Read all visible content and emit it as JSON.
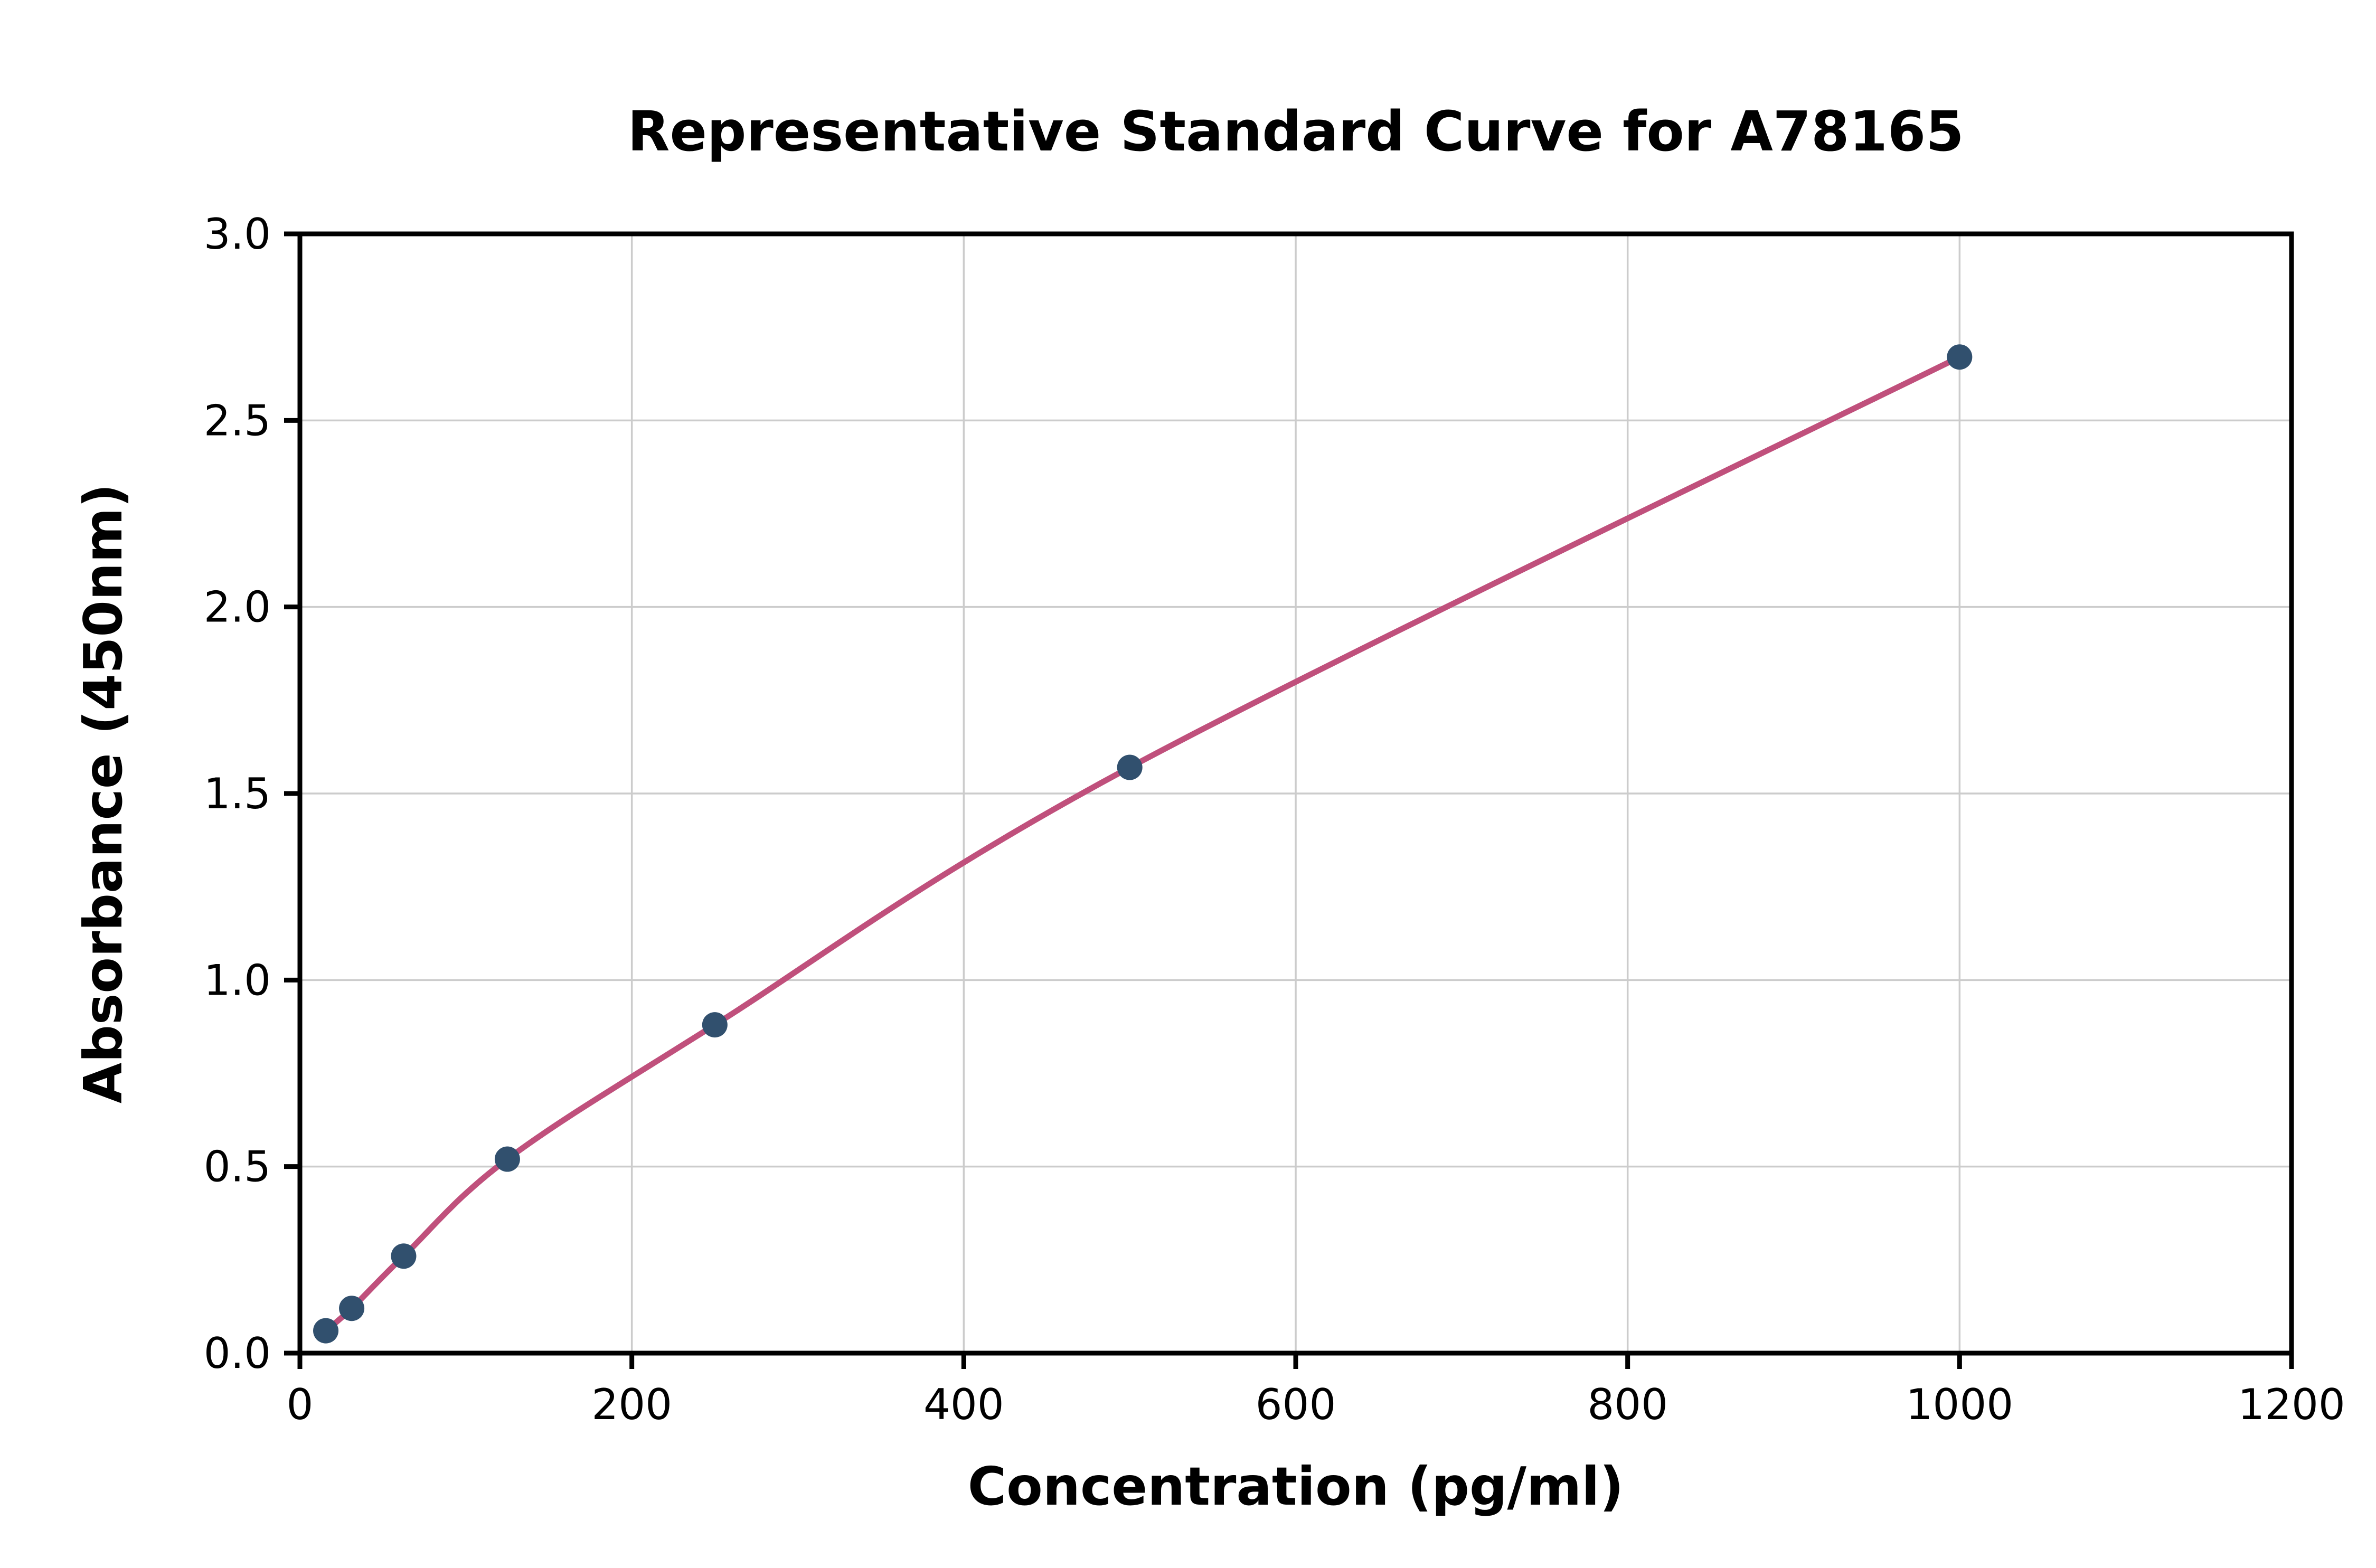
{
  "chart_data": {
    "type": "scatter",
    "title": "Representative Standard Curve for A78165",
    "xlabel": "Concentration (pg/ml)",
    "ylabel": "Absorbance (450nm)",
    "xlim": [
      0,
      1200
    ],
    "ylim": [
      0,
      3
    ],
    "x_ticks": [
      0,
      200,
      400,
      600,
      800,
      1000,
      1200
    ],
    "x_tick_labels": [
      "0",
      "200",
      "400",
      "600",
      "800",
      "1000",
      "1200"
    ],
    "y_ticks": [
      0,
      0.5,
      1,
      1.5,
      2,
      2.5,
      3
    ],
    "y_tick_labels": [
      "0.0",
      "0.5",
      "1.0",
      "1.5",
      "2.0",
      "2.5",
      "3.0"
    ],
    "grid": true,
    "legend_position": "none",
    "series": [
      {
        "name": "standard-points",
        "x": [
          15.6,
          31.2,
          62.5,
          125,
          250,
          500,
          1000
        ],
        "y": [
          0.06,
          0.12,
          0.26,
          0.52,
          0.88,
          1.57,
          2.67
        ]
      }
    ],
    "fit_curve_through_points": true,
    "colors": {
      "curve": "#c0507c",
      "points": "#31506e",
      "grid": "#cccccc",
      "axis": "#000000",
      "background": "#ffffff"
    }
  }
}
